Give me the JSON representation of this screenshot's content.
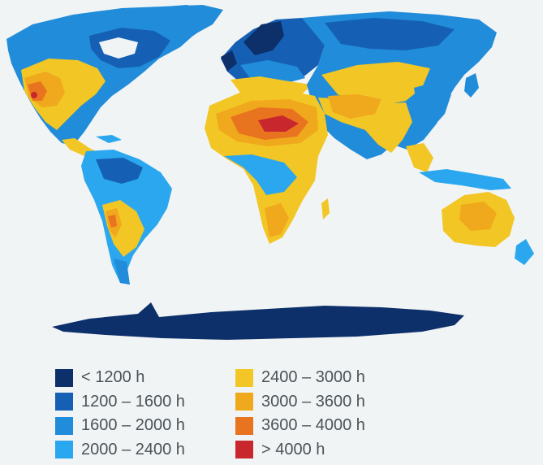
{
  "legend": {
    "items": [
      {
        "label": "< 1200 h",
        "color": "#0d2f6a"
      },
      {
        "label": "1200 – 1600 h",
        "color": "#1560b4"
      },
      {
        "label": "1600 – 2000 h",
        "color": "#218cda"
      },
      {
        "label": "2000 – 2400 h",
        "color": "#2aa7ee"
      },
      {
        "label": "2400 – 3000 h",
        "color": "#f2c624"
      },
      {
        "label": "3000 – 3600 h",
        "color": "#f0a81c"
      },
      {
        "label": "3600 – 4000 h",
        "color": "#e9741f"
      },
      {
        "label": "> 4000 h",
        "color": "#c9272e"
      }
    ]
  },
  "colors": {
    "background": "#f1f4f5",
    "ocean": "#f1f4f5",
    "text": "#4a5358"
  }
}
